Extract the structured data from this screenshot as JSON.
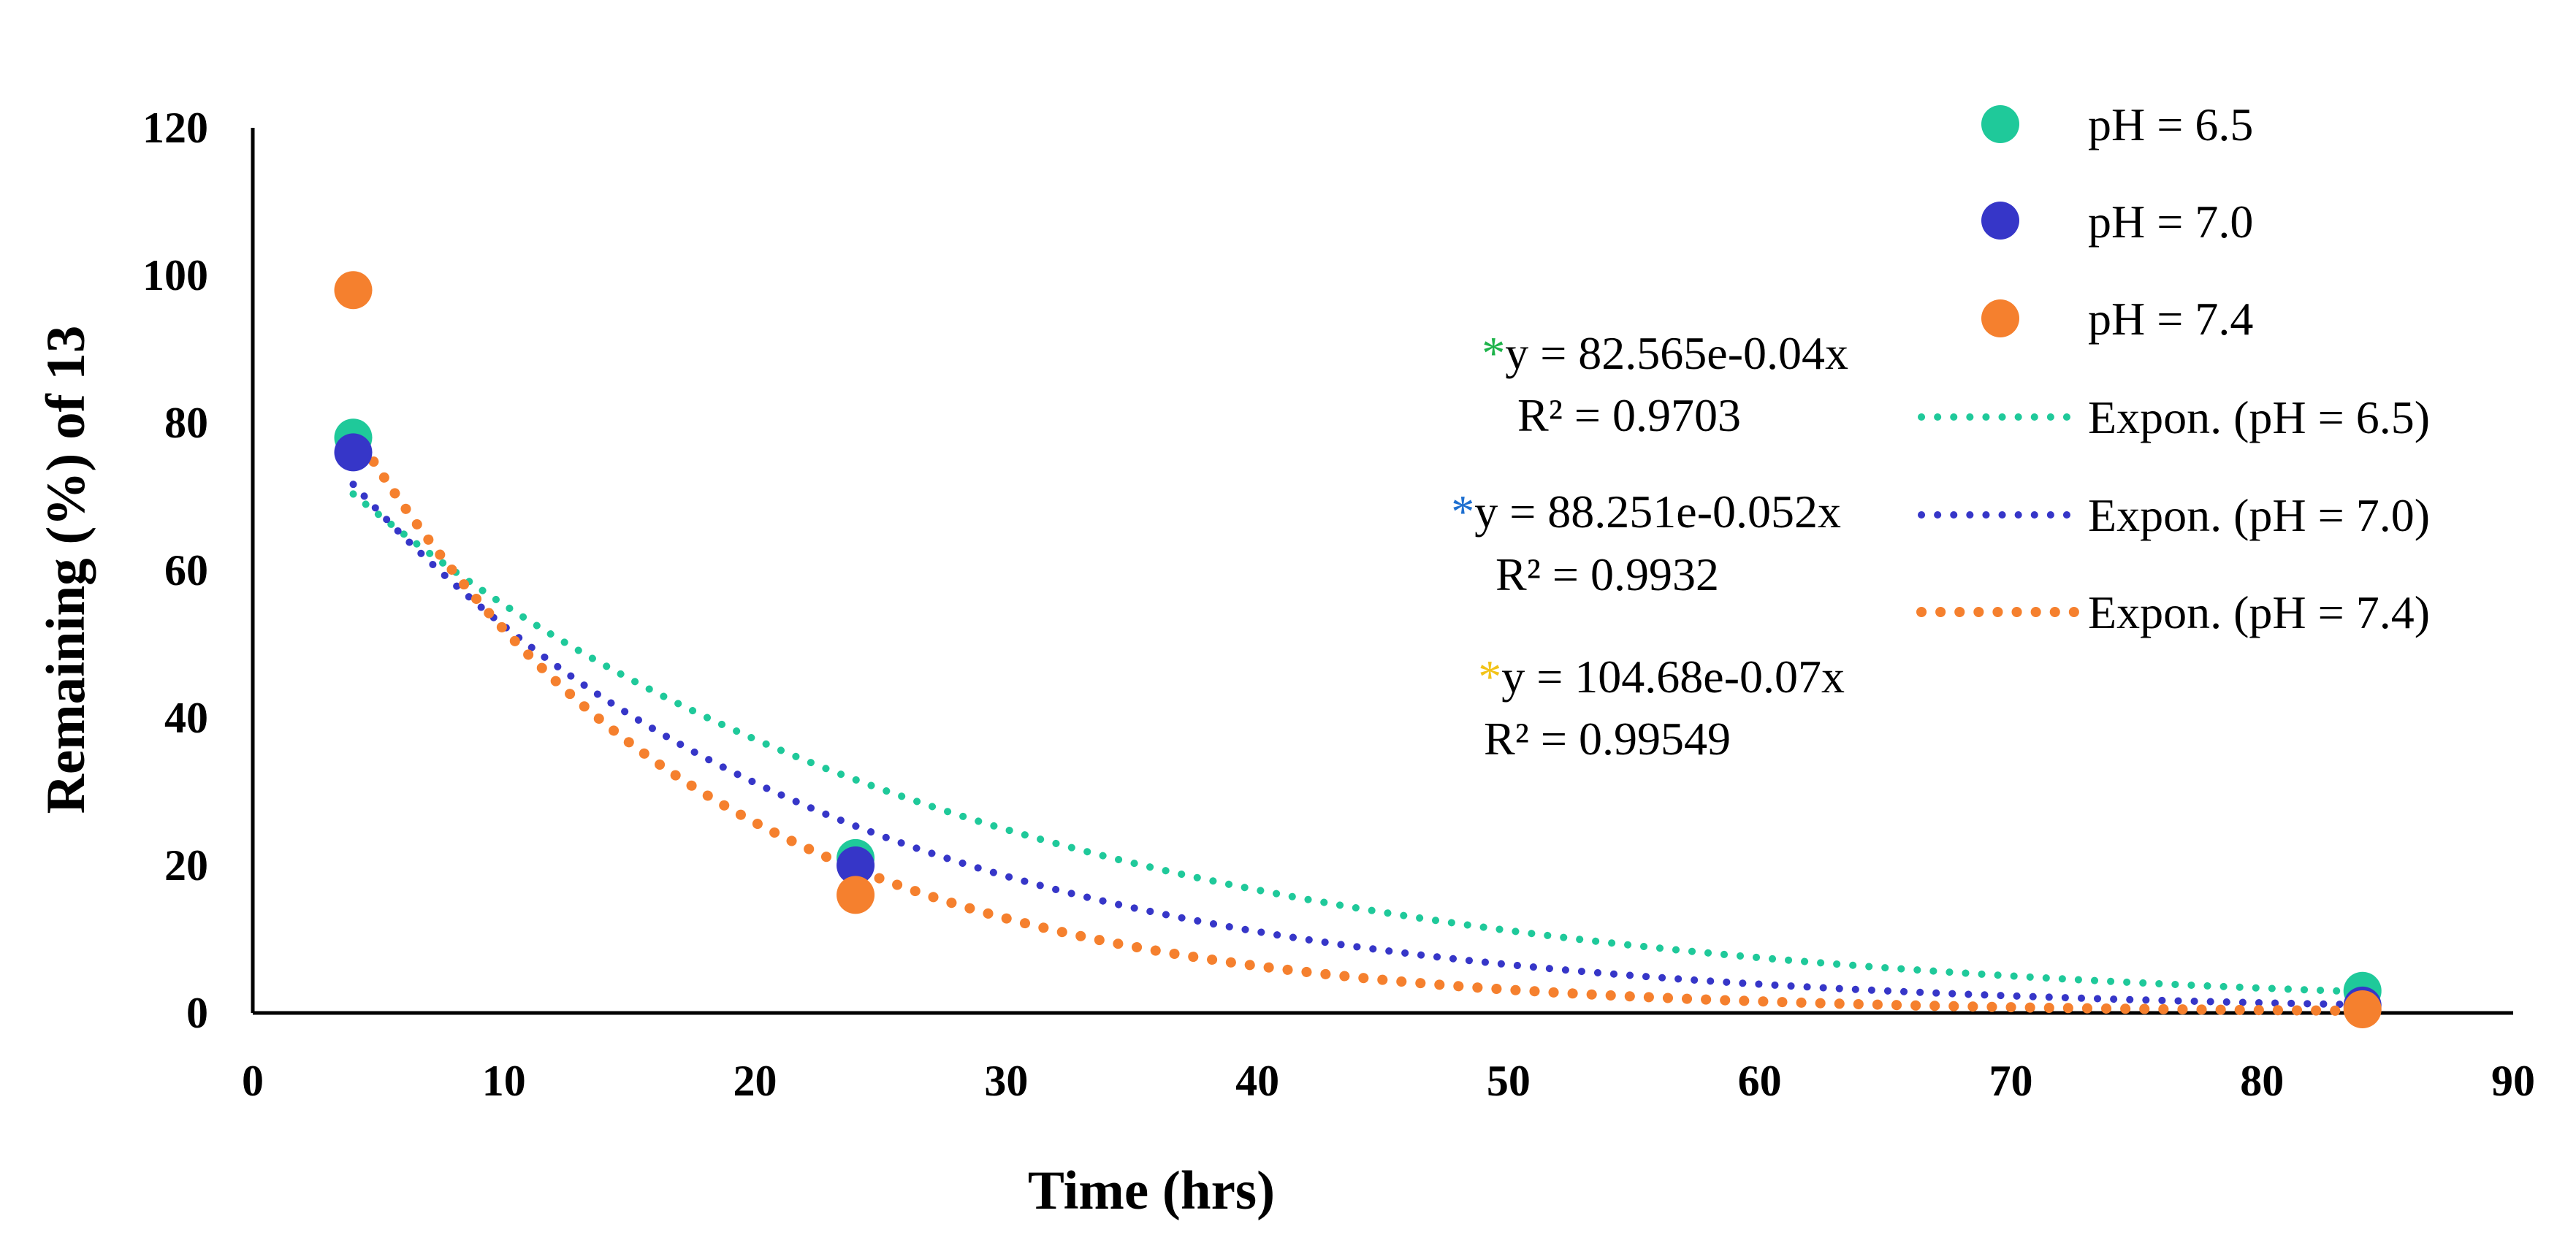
{
  "chart_data": {
    "type": "scatter",
    "xlabel": "Time (hrs)",
    "ylabel": "Remaining (%) of 13",
    "xlim": [
      0,
      90
    ],
    "ylim": [
      0,
      120
    ],
    "x_ticks": [
      "0",
      "10",
      "20",
      "30",
      "40",
      "50",
      "60",
      "70",
      "80",
      "90"
    ],
    "y_ticks": [
      "0",
      "20",
      "40",
      "60",
      "80",
      "100",
      "120"
    ],
    "grid": false,
    "legend_position": "top-right",
    "series": [
      {
        "name": "pH = 6.5",
        "color": "#1FC99A",
        "x": [
          4,
          24,
          84
        ],
        "y": [
          78,
          21,
          3
        ]
      },
      {
        "name": "pH = 7.0",
        "color": "#3636C8",
        "x": [
          4,
          24,
          84
        ],
        "y": [
          76,
          20,
          1
        ]
      },
      {
        "name": "pH = 7.4",
        "color": "#F5802E",
        "x": [
          4,
          24,
          84
        ],
        "y": [
          98,
          16,
          0.5
        ]
      }
    ],
    "trendlines": [
      {
        "name": "Expon. (pH = 6.5)",
        "color": "#1FC99A",
        "a": 82.565,
        "b": -0.04,
        "x_range": [
          4,
          84
        ]
      },
      {
        "name": "Expon. (pH = 7.0)",
        "color": "#3636C8",
        "a": 88.251,
        "b": -0.052,
        "x_range": [
          4,
          84
        ]
      },
      {
        "name": "Expon. (pH = 7.4)",
        "color": "#F5802E",
        "a": 104.68,
        "b": -0.07,
        "x_range": [
          4,
          84
        ]
      }
    ],
    "annotations": [
      {
        "star": "*",
        "star_color": "#1DB34A",
        "equation": "y = 82.565e-0.04x",
        "r2": "R² = 0.9703"
      },
      {
        "star": "*",
        "star_color": "#1E6FD0",
        "equation": "y = 88.251e-0.052x",
        "r2": "R² = 0.9932"
      },
      {
        "star": "*",
        "star_color": "#F2C318",
        "equation": "y = 104.68e-0.07x",
        "r2": "R² = 0.99549"
      }
    ]
  }
}
